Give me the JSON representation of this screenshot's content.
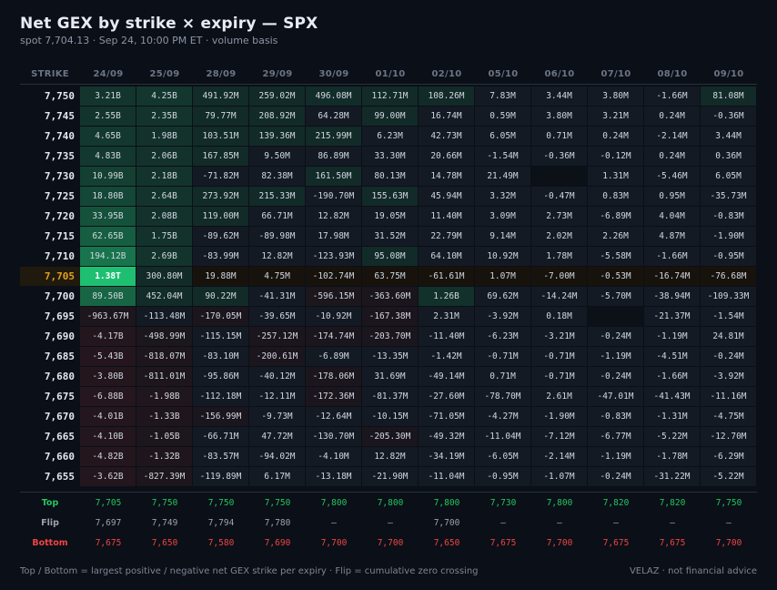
{
  "header": {
    "title": "Net GEX by strike × expiry — SPX",
    "subtitle": "spot 7,704.13  ·  Sep 24, 10:00 PM ET  ·  volume basis"
  },
  "table": {
    "strike_header": "STRIKE",
    "spot_strike": "7,705",
    "expiries": [
      "24/09",
      "25/09",
      "28/09",
      "29/09",
      "30/09",
      "01/10",
      "02/10",
      "05/10",
      "06/10",
      "07/10",
      "08/10",
      "09/10"
    ],
    "rows": [
      {
        "strike": "7,750",
        "cells": [
          "3.21B",
          "4.25B",
          "491.92M",
          "259.02M",
          "496.08M",
          "112.71M",
          "108.26M",
          "7.83M",
          "3.44M",
          "3.80M",
          "-1.66M",
          "81.08M"
        ],
        "levels": [
          0.08,
          0.09,
          0.02,
          0.01,
          0.02,
          0.01,
          0.01,
          0,
          0,
          0,
          0,
          0.01
        ]
      },
      {
        "strike": "7,745",
        "cells": [
          "2.55B",
          "2.35B",
          "79.77M",
          "208.92M",
          "64.28M",
          "99.00M",
          "16.74M",
          "0.59M",
          "3.80M",
          "3.21M",
          "0.24M",
          "-0.36M"
        ],
        "levels": [
          0.07,
          0.07,
          0.01,
          0.01,
          0,
          0.01,
          0,
          0,
          0,
          0,
          0,
          0
        ]
      },
      {
        "strike": "7,740",
        "cells": [
          "4.65B",
          "1.98B",
          "103.51M",
          "139.36M",
          "215.99M",
          "6.23M",
          "42.73M",
          "6.05M",
          "0.71M",
          "0.24M",
          "-2.14M",
          "3.44M"
        ],
        "levels": [
          0.1,
          0.06,
          0.01,
          0.01,
          0.01,
          0,
          0,
          0,
          0,
          0,
          0,
          0
        ]
      },
      {
        "strike": "7,735",
        "cells": [
          "4.83B",
          "2.06B",
          "167.85M",
          "9.50M",
          "86.89M",
          "33.30M",
          "20.66M",
          "-1.54M",
          "-0.36M",
          "-0.12M",
          "0.24M",
          "0.36M"
        ],
        "levels": [
          0.1,
          0.06,
          0.01,
          0,
          0,
          0,
          0,
          0,
          0,
          0,
          0,
          0
        ]
      },
      {
        "strike": "7,730",
        "cells": [
          "10.99B",
          "2.18B",
          "-71.82M",
          "82.38M",
          "161.50M",
          "80.13M",
          "14.78M",
          "21.49M",
          "",
          "1.31M",
          "-5.46M",
          "6.05M"
        ],
        "levels": [
          0.15,
          0.07,
          0,
          0,
          0.01,
          0,
          0,
          0,
          0,
          0,
          0,
          0
        ]
      },
      {
        "strike": "7,725",
        "cells": [
          "18.80B",
          "2.64B",
          "273.92M",
          "215.33M",
          "-190.70M",
          "155.63M",
          "45.94M",
          "3.32M",
          "-0.47M",
          "0.83M",
          "0.95M",
          "-35.73M"
        ],
        "levels": [
          0.2,
          0.07,
          0.01,
          0.01,
          0,
          0.01,
          0,
          0,
          0,
          0,
          0,
          0
        ]
      },
      {
        "strike": "7,720",
        "cells": [
          "33.95B",
          "2.08B",
          "119.00M",
          "66.71M",
          "12.82M",
          "19.05M",
          "11.40M",
          "3.09M",
          "2.73M",
          "-6.89M",
          "4.04M",
          "-0.83M"
        ],
        "levels": [
          0.27,
          0.06,
          0.01,
          0,
          0,
          0,
          0,
          0,
          0,
          0,
          0,
          0
        ]
      },
      {
        "strike": "7,715",
        "cells": [
          "62.65B",
          "1.75B",
          "-89.62M",
          "-89.98M",
          "17.98M",
          "31.52M",
          "22.79M",
          "9.14M",
          "2.02M",
          "2.26M",
          "4.87M",
          "-1.90M"
        ],
        "levels": [
          0.35,
          0.06,
          0,
          0,
          0,
          0,
          0,
          0,
          0,
          0,
          0,
          0
        ]
      },
      {
        "strike": "7,710",
        "cells": [
          "194.12B",
          "2.69B",
          "-83.99M",
          "12.82M",
          "-123.93M",
          "95.08M",
          "64.10M",
          "10.92M",
          "1.78M",
          "-5.58M",
          "-1.66M",
          "-0.95M"
        ],
        "levels": [
          0.5,
          0.07,
          0,
          0,
          0,
          0.01,
          0,
          0,
          0,
          0,
          0,
          0
        ]
      },
      {
        "strike": "7,705",
        "cells": [
          "1.38T",
          "300.80M",
          "19.88M",
          "4.75M",
          "-102.74M",
          "63.75M",
          "-61.61M",
          "1.07M",
          "-7.00M",
          "-0.53M",
          "-16.74M",
          "-76.68M"
        ],
        "levels": [
          1,
          0.01,
          0,
          0,
          0,
          0,
          0,
          0,
          0,
          0,
          0,
          0
        ]
      },
      {
        "strike": "7,700",
        "cells": [
          "89.50B",
          "452.04M",
          "90.22M",
          "-41.31M",
          "-596.15M",
          "-363.60M",
          "1.26B",
          "69.62M",
          "-14.24M",
          "-5.70M",
          "-38.94M",
          "-109.33M"
        ],
        "levels": [
          0.4,
          0.02,
          0.01,
          0,
          -0.02,
          -0.01,
          0.05,
          0,
          0,
          0,
          0,
          0
        ]
      },
      {
        "strike": "7,695",
        "cells": [
          "-963.67M",
          "-113.48M",
          "-170.05M",
          "-39.65M",
          "-10.92M",
          "-167.38M",
          "2.31M",
          "-3.92M",
          "0.18M",
          "",
          "-21.37M",
          "-1.54M"
        ],
        "levels": [
          -0.03,
          0,
          -0.01,
          0,
          0,
          -0.01,
          0,
          0,
          0,
          0,
          0,
          0
        ]
      },
      {
        "strike": "7,690",
        "cells": [
          "-4.17B",
          "-498.99M",
          "-115.15M",
          "-257.12M",
          "-174.74M",
          "-203.70M",
          "-11.40M",
          "-6.23M",
          "-3.21M",
          "-0.24M",
          "-1.19M",
          "24.81M"
        ],
        "levels": [
          -0.1,
          -0.02,
          0,
          -0.01,
          -0.01,
          -0.01,
          0,
          0,
          0,
          0,
          0,
          0
        ]
      },
      {
        "strike": "7,685",
        "cells": [
          "-5.43B",
          "-818.07M",
          "-83.10M",
          "-200.61M",
          "-6.89M",
          "-13.35M",
          "-1.42M",
          "-0.71M",
          "-0.71M",
          "-1.19M",
          "-4.51M",
          "-0.24M"
        ],
        "levels": [
          -0.11,
          -0.03,
          0,
          -0.01,
          0,
          0,
          0,
          0,
          0,
          0,
          0,
          0
        ]
      },
      {
        "strike": "7,680",
        "cells": [
          "-3.80B",
          "-811.01M",
          "-95.86M",
          "-40.12M",
          "-178.06M",
          "31.69M",
          "-49.14M",
          "0.71M",
          "-0.71M",
          "-0.24M",
          "-1.66M",
          "-3.92M"
        ],
        "levels": [
          -0.09,
          -0.03,
          0,
          0,
          -0.01,
          0,
          0,
          0,
          0,
          0,
          0,
          0
        ]
      },
      {
        "strike": "7,675",
        "cells": [
          "-6.88B",
          "-1.98B",
          "-112.18M",
          "-12.11M",
          "-172.36M",
          "-81.37M",
          "-27.60M",
          "-78.70M",
          "2.61M",
          "-47.01M",
          "-41.43M",
          "-11.16M"
        ],
        "levels": [
          -0.12,
          -0.06,
          0,
          0,
          -0.01,
          0,
          0,
          0,
          0,
          0,
          0,
          0
        ]
      },
      {
        "strike": "7,670",
        "cells": [
          "-4.01B",
          "-1.33B",
          "-156.99M",
          "-9.73M",
          "-12.64M",
          "-10.15M",
          "-71.05M",
          "-4.27M",
          "-1.90M",
          "-0.83M",
          "-1.31M",
          "-4.75M"
        ],
        "levels": [
          -0.09,
          -0.05,
          -0.01,
          0,
          0,
          0,
          0,
          0,
          0,
          0,
          0,
          0
        ]
      },
      {
        "strike": "7,665",
        "cells": [
          "-4.10B",
          "-1.05B",
          "-66.71M",
          "47.72M",
          "-130.70M",
          "-205.30M",
          "-49.32M",
          "-11.04M",
          "-7.12M",
          "-6.77M",
          "-5.22M",
          "-12.70M"
        ],
        "levels": [
          -0.09,
          -0.04,
          0,
          0,
          0,
          -0.01,
          0,
          0,
          0,
          0,
          0,
          0
        ]
      },
      {
        "strike": "7,660",
        "cells": [
          "-4.82B",
          "-1.32B",
          "-83.57M",
          "-94.02M",
          "-4.10M",
          "12.82M",
          "-34.19M",
          "-6.05M",
          "-2.14M",
          "-1.19M",
          "-1.78M",
          "-6.29M"
        ],
        "levels": [
          -0.1,
          -0.05,
          0,
          0,
          0,
          0,
          0,
          0,
          0,
          0,
          0,
          0
        ]
      },
      {
        "strike": "7,655",
        "cells": [
          "-3.62B",
          "-827.39M",
          "-119.89M",
          "6.17M",
          "-13.18M",
          "-21.90M",
          "-11.04M",
          "-0.95M",
          "-1.07M",
          "-0.24M",
          "-31.22M",
          "-5.22M"
        ],
        "levels": [
          -0.09,
          -0.03,
          0,
          0,
          0,
          0,
          0,
          0,
          0,
          0,
          0,
          0
        ]
      }
    ],
    "summary": {
      "top": {
        "label": "Top",
        "values": [
          "7,705",
          "7,750",
          "7,750",
          "7,750",
          "7,800",
          "7,800",
          "7,800",
          "7,730",
          "7,800",
          "7,820",
          "7,820",
          "7,750"
        ]
      },
      "flip": {
        "label": "Flip",
        "values": [
          "7,697",
          "7,749",
          "7,794",
          "7,780",
          "—",
          "—",
          "7,700",
          "—",
          "—",
          "—",
          "—",
          "—"
        ]
      },
      "bottom": {
        "label": "Bottom",
        "values": [
          "7,675",
          "7,650",
          "7,580",
          "7,690",
          "7,700",
          "7,700",
          "7,650",
          "7,675",
          "7,700",
          "7,675",
          "7,675",
          "7,700"
        ]
      }
    }
  },
  "colors": {
    "positive": "#1fbf72",
    "negative": "#b91c1c",
    "spot": "#e0a020",
    "cell_base": "#10151d"
  },
  "footer": {
    "left": "Top / Bottom = largest positive / negative net GEX strike per expiry  ·  Flip = cumulative zero crossing",
    "right": "VELAZ  ·  not financial advice"
  }
}
